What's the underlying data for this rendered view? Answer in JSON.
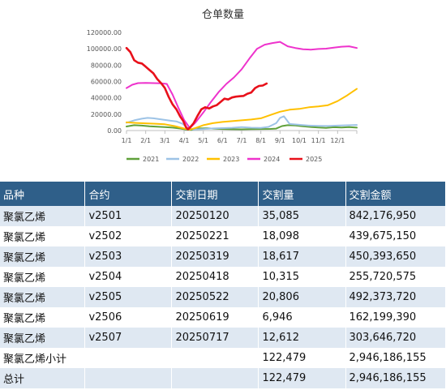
{
  "chart_data": {
    "type": "line",
    "title": "仓单数量",
    "xlabel": "",
    "ylabel": "",
    "x_ticks": [
      "1/1",
      "2/1",
      "3/1",
      "4/1",
      "5/1",
      "6/1",
      "7/1",
      "8/1",
      "9/1",
      "10/1",
      "11/1",
      "12/1"
    ],
    "y_ticks": [
      "0.00",
      "20000.00",
      "40000.00",
      "60000.00",
      "80000.00",
      "100000.00",
      "120000.00"
    ],
    "ylim": [
      0,
      120000
    ],
    "legend_position": "bottom",
    "grid": false,
    "series": [
      {
        "name": "2021",
        "color": "#5fa03a",
        "points": [
          [
            0,
            5000
          ],
          [
            0.4,
            6500
          ],
          [
            0.8,
            6000
          ],
          [
            1.2,
            5200
          ],
          [
            1.6,
            4800
          ],
          [
            2,
            4300
          ],
          [
            2.4,
            3600
          ],
          [
            2.8,
            2500
          ],
          [
            3.1,
            1200
          ],
          [
            3.4,
            800
          ],
          [
            3.8,
            2600
          ],
          [
            4.2,
            2800
          ],
          [
            4.6,
            2200
          ],
          [
            5,
            1900
          ],
          [
            5.5,
            1600
          ],
          [
            6,
            1500
          ],
          [
            6.5,
            1700
          ],
          [
            7,
            1900
          ],
          [
            7.5,
            2000
          ],
          [
            7.8,
            2400
          ],
          [
            8.1,
            5500
          ],
          [
            8.4,
            6500
          ],
          [
            8.8,
            6200
          ],
          [
            9.2,
            5200
          ],
          [
            9.6,
            4400
          ],
          [
            10,
            3800
          ],
          [
            10.4,
            3300
          ],
          [
            10.8,
            4100
          ],
          [
            11.2,
            3800
          ],
          [
            11.6,
            4300
          ],
          [
            12,
            3600
          ]
        ]
      },
      {
        "name": "2022",
        "color": "#9dc3e6",
        "points": [
          [
            0,
            9500
          ],
          [
            0.4,
            12500
          ],
          [
            0.8,
            14500
          ],
          [
            1.1,
            15500
          ],
          [
            1.4,
            15000
          ],
          [
            1.7,
            14000
          ],
          [
            2,
            13000
          ],
          [
            2.3,
            12000
          ],
          [
            2.6,
            11200
          ],
          [
            2.9,
            8500
          ],
          [
            3.2,
            3000
          ],
          [
            3.5,
            1200
          ],
          [
            4,
            1800
          ],
          [
            4.5,
            2600
          ],
          [
            5,
            3000
          ],
          [
            5.5,
            3400
          ],
          [
            6,
            4200
          ],
          [
            6.5,
            3500
          ],
          [
            7,
            3300
          ],
          [
            7.4,
            4500
          ],
          [
            7.8,
            9000
          ],
          [
            8,
            15500
          ],
          [
            8.2,
            17500
          ],
          [
            8.5,
            8000
          ],
          [
            9,
            7000
          ],
          [
            9.5,
            6000
          ],
          [
            10,
            5800
          ],
          [
            10.5,
            5600
          ],
          [
            11,
            6000
          ],
          [
            11.5,
            6400
          ],
          [
            12,
            6800
          ]
        ]
      },
      {
        "name": "2023",
        "color": "#ffc000",
        "points": [
          [
            0,
            10000
          ],
          [
            0.5,
            9300
          ],
          [
            1,
            8800
          ],
          [
            1.5,
            8300
          ],
          [
            2,
            7600
          ],
          [
            2.5,
            5500
          ],
          [
            3,
            2500
          ],
          [
            3.3,
            1200
          ],
          [
            3.6,
            3200
          ],
          [
            4,
            6500
          ],
          [
            4.5,
            9000
          ],
          [
            5,
            10500
          ],
          [
            5.5,
            11500
          ],
          [
            6,
            12500
          ],
          [
            6.5,
            13500
          ],
          [
            7,
            15000
          ],
          [
            7.5,
            19000
          ],
          [
            8,
            23000
          ],
          [
            8.5,
            25500
          ],
          [
            9,
            26500
          ],
          [
            9.5,
            28500
          ],
          [
            10,
            29500
          ],
          [
            10.5,
            31000
          ],
          [
            11,
            36000
          ],
          [
            11.5,
            43000
          ],
          [
            12,
            51000
          ]
        ]
      },
      {
        "name": "2024",
        "color": "#ee33cc",
        "points": [
          [
            0,
            52000
          ],
          [
            0.3,
            56000
          ],
          [
            0.6,
            58000
          ],
          [
            1,
            58200
          ],
          [
            1.4,
            58000
          ],
          [
            1.8,
            57800
          ],
          [
            2.1,
            57000
          ],
          [
            2.4,
            44000
          ],
          [
            2.7,
            28000
          ],
          [
            3,
            13000
          ],
          [
            3.3,
            3000
          ],
          [
            3.6,
            10000
          ],
          [
            4,
            22000
          ],
          [
            4.4,
            35000
          ],
          [
            4.8,
            47000
          ],
          [
            5.2,
            57000
          ],
          [
            5.6,
            65000
          ],
          [
            6,
            75000
          ],
          [
            6.4,
            88000
          ],
          [
            6.8,
            100000
          ],
          [
            7.2,
            105000
          ],
          [
            7.6,
            107000
          ],
          [
            8,
            108500
          ],
          [
            8.4,
            103000
          ],
          [
            8.8,
            101000
          ],
          [
            9.2,
            99500
          ],
          [
            9.6,
            99000
          ],
          [
            10,
            99800
          ],
          [
            10.4,
            100200
          ],
          [
            10.8,
            101500
          ],
          [
            11.2,
            102500
          ],
          [
            11.6,
            103000
          ],
          [
            12,
            101000
          ]
        ]
      },
      {
        "name": "2025",
        "color": "#e8101a",
        "points": [
          [
            0,
            101000
          ],
          [
            0.2,
            96000
          ],
          [
            0.4,
            86000
          ],
          [
            0.6,
            83000
          ],
          [
            0.8,
            82000
          ],
          [
            1,
            78000
          ],
          [
            1.2,
            74000
          ],
          [
            1.4,
            70000
          ],
          [
            1.6,
            63000
          ],
          [
            1.8,
            58000
          ],
          [
            2,
            52000
          ],
          [
            2.2,
            41000
          ],
          [
            2.4,
            32000
          ],
          [
            2.6,
            26000
          ],
          [
            2.8,
            17000
          ],
          [
            2.95,
            12000
          ],
          [
            3.1,
            4000
          ],
          [
            3.2,
            1500
          ],
          [
            3.3,
            3500
          ],
          [
            3.5,
            9000
          ],
          [
            3.7,
            18000
          ],
          [
            3.9,
            26000
          ],
          [
            4.1,
            28500
          ],
          [
            4.3,
            27000
          ],
          [
            4.5,
            29500
          ],
          [
            4.7,
            31000
          ],
          [
            4.9,
            35000
          ],
          [
            5.1,
            39000
          ],
          [
            5.3,
            38000
          ],
          [
            5.5,
            40500
          ],
          [
            5.7,
            41500
          ],
          [
            5.9,
            42000
          ],
          [
            6.1,
            42300
          ],
          [
            6.3,
            45000
          ],
          [
            6.5,
            46500
          ],
          [
            6.7,
            52000
          ],
          [
            6.9,
            54500
          ],
          [
            7.1,
            55000
          ],
          [
            7.3,
            57500
          ]
        ]
      }
    ]
  },
  "table": {
    "headers": [
      "品种",
      "合约",
      "交割日期",
      "交割量",
      "交割金额"
    ],
    "rows": [
      [
        "聚氯乙烯",
        "v2501",
        "20250120",
        "35,085",
        "842,176,950"
      ],
      [
        "聚氯乙烯",
        "v2502",
        "20250221",
        "18,098",
        "439,675,150"
      ],
      [
        "聚氯乙烯",
        "v2503",
        "20250319",
        "18,617",
        "450,393,650"
      ],
      [
        "聚氯乙烯",
        "v2504",
        "20250418",
        "10,315",
        "255,720,575"
      ],
      [
        "聚氯乙烯",
        "v2505",
        "20250522",
        "20,806",
        "492,373,720"
      ],
      [
        "聚氯乙烯",
        "v2506",
        "20250619",
        "6,946",
        "162,199,390"
      ],
      [
        "聚氯乙烯",
        "v2507",
        "20250717",
        "12,612",
        "303,646,720"
      ],
      [
        "聚氯乙烯小计",
        "",
        "",
        "122,479",
        "2,946,186,155"
      ]
    ],
    "total": [
      "总计",
      "",
      "",
      "122,479",
      "2,946,186,155"
    ]
  }
}
